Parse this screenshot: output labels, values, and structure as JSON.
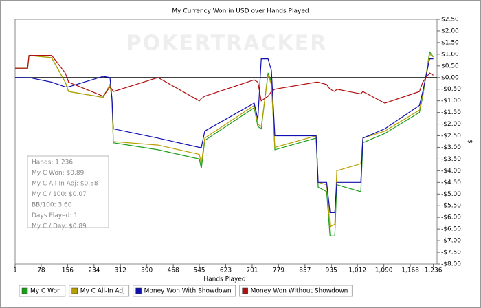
{
  "chart_data": {
    "type": "line",
    "title": "My Currency Won in USD over Hands Played",
    "watermark": "POKERTRACKER",
    "x_label": "Hands Played",
    "y_label": "$",
    "x": [
      1,
      38,
      42,
      109,
      149,
      159,
      261,
      281,
      287,
      291,
      423,
      545,
      551,
      561,
      707,
      718,
      728,
      748,
      758,
      768,
      890,
      896,
      921,
      931,
      945,
      951,
      1022,
      1028,
      1093,
      1195,
      1205,
      1225,
      1236
    ],
    "series": [
      {
        "name": "My C Won",
        "color": "#1a9e1a",
        "values": [
          0.4,
          0.4,
          0.95,
          0.85,
          -0.2,
          -0.6,
          -0.85,
          -0.3,
          -0.9,
          -2.8,
          -3.1,
          -3.5,
          -3.9,
          -2.7,
          -1.3,
          -2.1,
          -2.2,
          0.2,
          -0.2,
          -3.1,
          -2.6,
          -4.7,
          -4.9,
          -6.8,
          -6.8,
          -4.6,
          -4.9,
          -2.8,
          -2.4,
          -1.5,
          -0.8,
          1.1,
          0.89
        ]
      },
      {
        "name": "My C All-In Adj",
        "color": "#b8a000",
        "values": [
          0.4,
          0.4,
          0.95,
          0.85,
          -0.2,
          -0.6,
          -0.85,
          -0.3,
          -0.9,
          -2.75,
          -2.9,
          -3.3,
          -3.7,
          -2.6,
          -1.2,
          -2.0,
          -2.1,
          0.1,
          -0.3,
          -3.0,
          -2.5,
          -4.5,
          -4.6,
          -6.4,
          -6.3,
          -4.0,
          -3.7,
          -2.6,
          -2.3,
          -1.4,
          -0.7,
          1.0,
          0.88
        ]
      },
      {
        "name": "Money Won With Showdown",
        "color": "#1010b0",
        "values": [
          0,
          0,
          0,
          -0.2,
          -0.4,
          -0.4,
          0.05,
          0.0,
          -0.9,
          -2.2,
          -2.6,
          -3.0,
          -3.0,
          -2.3,
          -1.1,
          -1.8,
          0.8,
          0.8,
          0.3,
          -2.5,
          -2.5,
          -4.5,
          -4.5,
          -5.8,
          -5.8,
          -4.5,
          -4.5,
          -2.6,
          -2.2,
          -1.2,
          -0.6,
          0.8,
          0.8
        ]
      },
      {
        "name": "Money Won Without Showdown",
        "color": "#b01010",
        "values": [
          0.4,
          0.4,
          0.95,
          0.95,
          0.2,
          -0.2,
          -0.8,
          -0.4,
          -0.5,
          -0.6,
          0.0,
          -1.0,
          -0.9,
          -0.8,
          -0.1,
          -0.2,
          -1.0,
          -0.8,
          -0.6,
          -0.5,
          -0.2,
          -0.2,
          -0.3,
          -0.5,
          -0.6,
          -0.5,
          -0.7,
          -0.6,
          -1.1,
          -0.6,
          -0.2,
          0.2,
          0.1
        ]
      }
    ],
    "xlim": [
      1,
      1247
    ],
    "xticks": [
      1,
      78,
      156,
      234,
      312,
      390,
      468,
      545,
      623,
      701,
      779,
      857,
      935,
      {
        "value": 1012,
        "label": "1,012"
      },
      {
        "value": 1090,
        "label": "1,090"
      },
      {
        "value": 1168,
        "label": "1,168"
      },
      {
        "value": 1236,
        "label": "1,236"
      }
    ],
    "ylim": [
      -8,
      2.5
    ],
    "yticks": [
      {
        "value": 2.5,
        "label": "$2.50"
      },
      {
        "value": 2,
        "label": "$2.00"
      },
      {
        "value": 1.5,
        "label": "$1.50"
      },
      {
        "value": 1,
        "label": "$1.00"
      },
      {
        "value": 0.5,
        "label": "$0.50"
      },
      {
        "value": 0,
        "label": "$0.00"
      },
      {
        "value": -0.5,
        "label": "-$0.50"
      },
      {
        "value": -1,
        "label": "-$1.00"
      },
      {
        "value": -1.5,
        "label": "-$1.50"
      },
      {
        "value": -2,
        "label": "-$2.00"
      },
      {
        "value": -2.5,
        "label": "-$2.50"
      },
      {
        "value": -3,
        "label": "-$3.00"
      },
      {
        "value": -3.5,
        "label": "-$3.50"
      },
      {
        "value": -4,
        "label": "-$4.00"
      },
      {
        "value": -4.5,
        "label": "-$4.50"
      },
      {
        "value": -5,
        "label": "-$5.00"
      },
      {
        "value": -5.5,
        "label": "-$5.50"
      },
      {
        "value": -6,
        "label": "-$6.00"
      },
      {
        "value": -6.5,
        "label": "-$6.50"
      },
      {
        "value": -7,
        "label": "-$7.00"
      },
      {
        "value": -7.5,
        "label": "-$7.50"
      },
      {
        "value": -8,
        "label": "-$8.00"
      }
    ],
    "grid": false,
    "zero_line": true,
    "legend": "bottom",
    "stats": [
      "Hands: 1,236",
      "My C Won: $0.89",
      "My C All-In Adj: $0.88",
      "My C / 100: $0.07",
      "BB/100: 3.60",
      "Days Played: 1",
      "My C / Day: $0.89"
    ]
  }
}
